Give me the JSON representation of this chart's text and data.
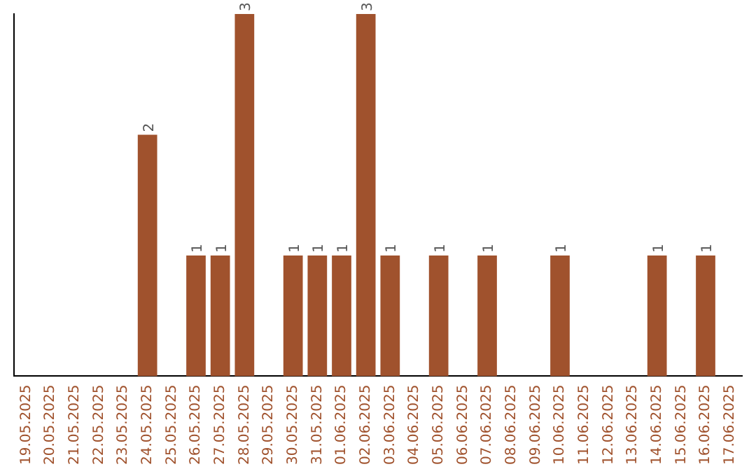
{
  "chart_data": {
    "type": "bar",
    "categories": [
      "19.05.2025",
      "20.05.2025",
      "21.05.2025",
      "22.05.2025",
      "23.05.2025",
      "24.05.2025",
      "25.05.2025",
      "26.05.2025",
      "27.05.2025",
      "28.05.2025",
      "29.05.2025",
      "30.05.2025",
      "31.05.2025",
      "01.06.2025",
      "02.06.2025",
      "03.06.2025",
      "04.06.2025",
      "05.06.2025",
      "06.06.2025",
      "07.06.2025",
      "08.06.2025",
      "09.06.2025",
      "10.06.2025",
      "11.06.2025",
      "12.06.2025",
      "13.06.2025",
      "14.06.2025",
      "15.06.2025",
      "16.06.2025",
      "17.06.2025"
    ],
    "values": [
      0,
      0,
      0,
      0,
      0,
      2,
      0,
      1,
      1,
      3,
      0,
      1,
      1,
      1,
      3,
      1,
      0,
      1,
      0,
      1,
      0,
      0,
      1,
      0,
      0,
      0,
      1,
      0,
      1,
      0
    ],
    "value_labels": [
      null,
      null,
      null,
      null,
      null,
      "2",
      null,
      "1",
      "1",
      "3",
      null,
      "1",
      "1",
      "1",
      "3",
      "1",
      null,
      "1",
      null,
      "1",
      null,
      null,
      "1",
      null,
      null,
      null,
      "1",
      null,
      "1",
      null
    ],
    "color": "#a0522d",
    "grid": false,
    "legend": false,
    "tick_labels": "x"
  }
}
